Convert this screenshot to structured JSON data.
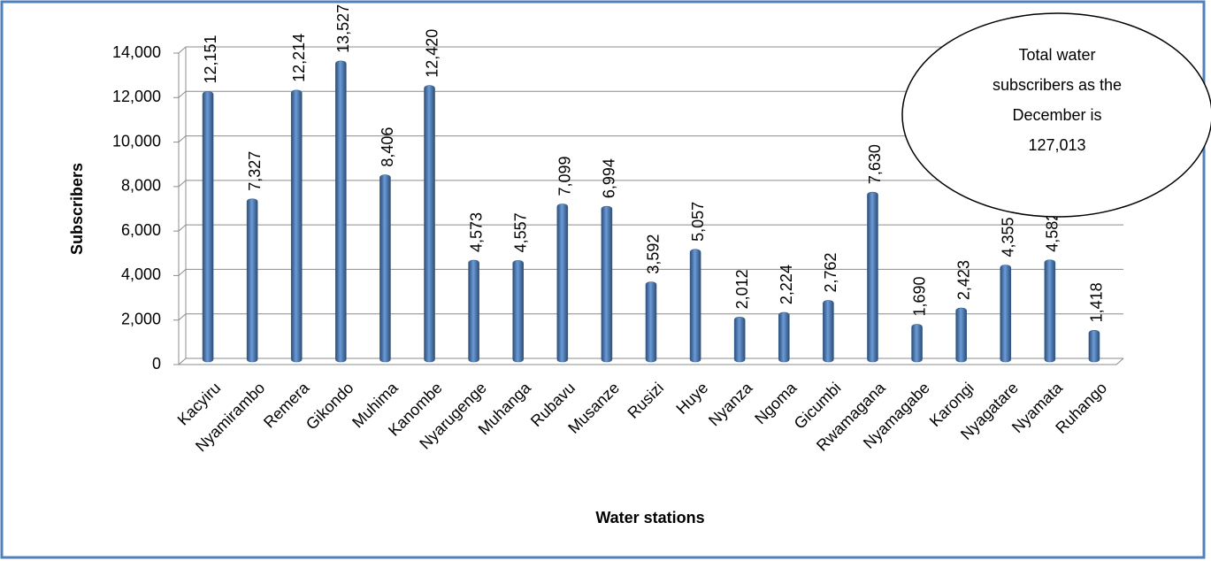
{
  "chart_data": {
    "type": "bar",
    "x_label": "Water stations",
    "y_label": "Subscribers",
    "categories": [
      "Kacyiru",
      "Nyamirambo",
      "Remera",
      "Gikondo",
      "Muhima",
      "Kanombe",
      "Nyarugenge",
      "Muhanga",
      "Rubavu",
      "Musanze",
      "Rusizi",
      "Huye",
      "Nyanza",
      "Ngoma",
      "Gicumbi",
      "Rwamagana",
      "Nyamagabe",
      "Karongi",
      "Nyagatare",
      "Nyamata",
      "Ruhango"
    ],
    "values": [
      12151,
      7327,
      12214,
      13527,
      8406,
      12420,
      4573,
      4557,
      7099,
      6994,
      3592,
      5057,
      2012,
      2224,
      2762,
      7630,
      1690,
      2423,
      4355,
      4582,
      1418
    ],
    "value_labels": [
      "12,151",
      "7,327",
      "12,214",
      "13,527",
      "8,406",
      "12,420",
      "4,573",
      "4,557",
      "7,099",
      "6,994",
      "3,592",
      "5,057",
      "2,012",
      "2,224",
      "2,762",
      "7,630",
      "1,690",
      "2,423",
      "4,355",
      "4,582",
      "1,418"
    ],
    "color": "#4f81bd",
    "ylim": [
      0,
      14000
    ],
    "yticks": [
      0,
      {
        "value": 2000,
        "label": "2,000"
      },
      {
        "value": 4000,
        "label": "4,000"
      },
      {
        "value": 6000,
        "label": "6,000"
      },
      {
        "value": 8000,
        "label": "8,000"
      },
      {
        "value": 10000,
        "label": "10,000"
      },
      {
        "value": 12000,
        "label": "12,000"
      },
      {
        "value": 14000,
        "label": "14,000"
      }
    ],
    "grid": true,
    "annotation": [
      "Total water",
      "subscribers as the",
      "December is",
      "127,013"
    ]
  }
}
